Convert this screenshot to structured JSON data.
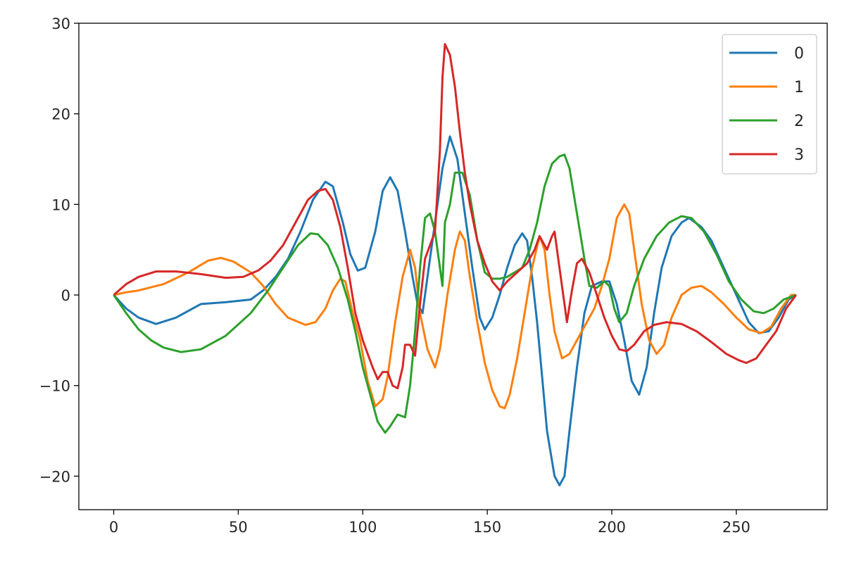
{
  "chart_data": {
    "type": "line",
    "title": "",
    "xlabel": "",
    "ylabel": "",
    "xlim": [
      -14,
      286.5
    ],
    "ylim": [
      -23.7,
      30
    ],
    "xticks": [
      0,
      50,
      100,
      150,
      200,
      250
    ],
    "yticks": [
      -20,
      -10,
      0,
      10,
      20,
      30
    ],
    "ytick_labels": [
      "−20",
      "−10",
      "0",
      "10",
      "20",
      "30"
    ],
    "grid": false,
    "legend_position": "top-right",
    "series": [
      {
        "name": "0",
        "color": "#1f77b4",
        "x": [
          0,
          5,
          10,
          17,
          25,
          35,
          45,
          55,
          60,
          65,
          70,
          75,
          80,
          85,
          88,
          92,
          95,
          98,
          101,
          105,
          108,
          111,
          114,
          117,
          120,
          122,
          124,
          126,
          129,
          132,
          135,
          138,
          141,
          144,
          147,
          149,
          152,
          155,
          158,
          161,
          164,
          166,
          168,
          170,
          172,
          174,
          177,
          179,
          181,
          183,
          186,
          189,
          192,
          196,
          199,
          202,
          205,
          208,
          211,
          214,
          217,
          220,
          224,
          228,
          231,
          236,
          240,
          245,
          250,
          255,
          259,
          263,
          267,
          271,
          274
        ],
        "y": [
          0,
          -1.5,
          -2.5,
          -3.2,
          -2.5,
          -1,
          -0.8,
          -0.5,
          0.5,
          2,
          4,
          7,
          10.5,
          12.5,
          12,
          8,
          4.5,
          2.7,
          3,
          7,
          11.5,
          13,
          11.5,
          7,
          2,
          -1,
          -2,
          2,
          8,
          14,
          17.5,
          15,
          9,
          3,
          -2.5,
          -3.8,
          -2.5,
          0,
          3,
          5.5,
          6.8,
          6,
          2,
          -3,
          -9,
          -15,
          -20,
          -21,
          -20,
          -15,
          -8,
          -2,
          1,
          1.5,
          1.5,
          -1,
          -5,
          -9.5,
          -11,
          -8,
          -2,
          3,
          6.5,
          8,
          8.5,
          7.5,
          6,
          3,
          0,
          -3,
          -4.2,
          -4,
          -2.5,
          -0.5,
          0
        ]
      },
      {
        "name": "1",
        "color": "#ff7f0e",
        "x": [
          0,
          5,
          10,
          20,
          30,
          38,
          43,
          48,
          55,
          60,
          65,
          70,
          77,
          81,
          85,
          88,
          91,
          93,
          96,
          99,
          102,
          105,
          108,
          110,
          113,
          116,
          119,
          121,
          123,
          126,
          129,
          131,
          134,
          137,
          139,
          141,
          143,
          146,
          149,
          152,
          155,
          157,
          159,
          162,
          165,
          168,
          171,
          173,
          175,
          177,
          180,
          183,
          186,
          190,
          193,
          196,
          199,
          202,
          205,
          207,
          209,
          212,
          215,
          218,
          221,
          224,
          228,
          232,
          236,
          240,
          245,
          250,
          255,
          260,
          264,
          268,
          272,
          274
        ],
        "y": [
          0,
          0.3,
          0.5,
          1.2,
          2.5,
          3.8,
          4.1,
          3.7,
          2.5,
          1,
          -1,
          -2.5,
          -3.3,
          -3,
          -1.5,
          0.5,
          1.8,
          1.5,
          -2,
          -5,
          -9.5,
          -12.3,
          -11.5,
          -9,
          -3,
          2,
          5,
          3,
          -2,
          -6,
          -8,
          -6,
          0,
          5,
          7,
          6,
          2,
          -3,
          -7.5,
          -10.5,
          -12.3,
          -12.5,
          -11,
          -7,
          -2,
          3,
          6.5,
          5,
          0,
          -4,
          -7,
          -6.5,
          -5,
          -3,
          -1.5,
          1,
          4,
          8.5,
          10,
          9,
          5,
          -1,
          -5,
          -6.5,
          -5.5,
          -2.5,
          0,
          0.8,
          1,
          0.3,
          -1,
          -2.5,
          -3.8,
          -4.2,
          -3.5,
          -1.5,
          0,
          0
        ]
      },
      {
        "name": "2",
        "color": "#2ca02c",
        "x": [
          0,
          5,
          10,
          15,
          20,
          27,
          35,
          45,
          55,
          62,
          68,
          74,
          79,
          82,
          86,
          90,
          94,
          97,
          100,
          103,
          106,
          109,
          111,
          114,
          117,
          119,
          121,
          123,
          125,
          127,
          129,
          131,
          132,
          133,
          135,
          137,
          140,
          143,
          146,
          149,
          152,
          155,
          158,
          161,
          164,
          167,
          170,
          173,
          176,
          179,
          181,
          183,
          186,
          189,
          191,
          194,
          197,
          199,
          201,
          203,
          206,
          209,
          213,
          218,
          223,
          228,
          232,
          237,
          242,
          247,
          252,
          257,
          261,
          265,
          269,
          274
        ],
        "y": [
          0,
          -2,
          -3.8,
          -5,
          -5.8,
          -6.3,
          -6,
          -4.5,
          -2,
          0.5,
          3,
          5.5,
          6.8,
          6.7,
          5.5,
          3,
          -0.5,
          -4,
          -8,
          -11,
          -14,
          -15.2,
          -14.5,
          -13.2,
          -13.5,
          -10,
          -4,
          3,
          8.5,
          9,
          7,
          3,
          1,
          8,
          10,
          13.5,
          13.5,
          11,
          6,
          2.5,
          1.8,
          1.8,
          2,
          2.5,
          3,
          5,
          8,
          12,
          14.5,
          15.3,
          15.5,
          14,
          9,
          4,
          1,
          0.8,
          1.5,
          1,
          -1.5,
          -3,
          -2,
          1,
          4,
          6.5,
          8,
          8.7,
          8.5,
          7,
          4.5,
          1.5,
          -0.5,
          -1.8,
          -2,
          -1.5,
          -0.5,
          0
        ]
      },
      {
        "name": "3",
        "color": "#d62728",
        "x": [
          0,
          5,
          10,
          17,
          25,
          35,
          45,
          52,
          58,
          63,
          68,
          73,
          78,
          82,
          85,
          88,
          91,
          94,
          97,
          100,
          102,
          104,
          106,
          108,
          110,
          112,
          114,
          116,
          117,
          119,
          121,
          123,
          125,
          127,
          129,
          131,
          132,
          133,
          135,
          137,
          139,
          141,
          143,
          146,
          149,
          152,
          155,
          158,
          162,
          166,
          169,
          171,
          173,
          174,
          176,
          177,
          179,
          181,
          182,
          184,
          186,
          188,
          191,
          194,
          197,
          200,
          203,
          206,
          209,
          213,
          217,
          222,
          228,
          234,
          240,
          246,
          251,
          254,
          258,
          262,
          266,
          270,
          274
        ],
        "y": [
          0,
          1.2,
          2,
          2.6,
          2.6,
          2.3,
          1.9,
          2,
          2.7,
          3.8,
          5.5,
          8,
          10.5,
          11.5,
          11.7,
          10.5,
          7.5,
          3,
          -2,
          -5,
          -6.5,
          -8,
          -9.3,
          -8.5,
          -8.5,
          -10,
          -10.3,
          -8,
          -5.5,
          -5.5,
          -6.7,
          -1,
          4,
          5.5,
          7,
          16,
          24,
          27.7,
          26.5,
          23,
          18,
          13.5,
          10,
          6,
          3.5,
          1.5,
          0.5,
          1.5,
          2.5,
          3.5,
          5,
          6.5,
          5.5,
          5,
          6.5,
          7,
          3,
          -1,
          -3,
          0.5,
          3.5,
          4,
          2.5,
          0,
          -2.5,
          -4.5,
          -6,
          -6.2,
          -5.5,
          -4,
          -3.3,
          -3,
          -3.2,
          -4,
          -5.2,
          -6.5,
          -7.2,
          -7.5,
          -7,
          -5.5,
          -4,
          -1.5,
          0
        ]
      }
    ]
  }
}
